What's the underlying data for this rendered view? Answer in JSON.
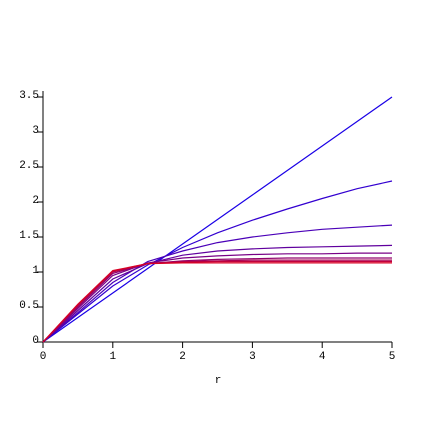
{
  "chart_data": {
    "type": "line",
    "x_label": "r",
    "x": [
      0,
      0.5,
      1,
      1.5,
      2,
      2.5,
      3,
      3.5,
      4,
      4.5,
      5
    ],
    "xlim": [
      0,
      5
    ],
    "xticks": [
      0,
      1,
      2,
      3,
      4,
      5
    ],
    "ylim": [
      0,
      3.5
    ],
    "yticks": [
      0,
      0.5,
      1,
      1.5,
      2,
      2.5,
      3,
      3.5
    ],
    "series": [
      {
        "color": "#1a00e6",
        "values": [
          0,
          0.35,
          0.7,
          1.05,
          1.4,
          1.75,
          2.1,
          2.45,
          2.8,
          3.15,
          3.5
        ]
      },
      {
        "color": "#3300d0",
        "values": [
          0,
          0.4,
          0.8,
          1.1,
          1.35,
          1.56,
          1.74,
          1.9,
          2.05,
          2.19,
          2.3
        ]
      },
      {
        "color": "#4a00b8",
        "values": [
          0,
          0.42,
          0.85,
          1.15,
          1.3,
          1.42,
          1.5,
          1.56,
          1.61,
          1.64,
          1.67
        ]
      },
      {
        "color": "#60009e",
        "values": [
          0,
          0.45,
          0.9,
          1.12,
          1.24,
          1.3,
          1.33,
          1.35,
          1.36,
          1.37,
          1.38
        ]
      },
      {
        "color": "#780086",
        "values": [
          0,
          0.48,
          0.95,
          1.13,
          1.2,
          1.23,
          1.25,
          1.26,
          1.26,
          1.27,
          1.27
        ]
      },
      {
        "color": "#90006c",
        "values": [
          0,
          0.5,
          0.98,
          1.12,
          1.16,
          1.18,
          1.19,
          1.2,
          1.2,
          1.2,
          1.2
        ]
      },
      {
        "color": "#a80054",
        "values": [
          0,
          0.52,
          1.0,
          1.12,
          1.15,
          1.16,
          1.17,
          1.17,
          1.17,
          1.17,
          1.17
        ]
      },
      {
        "color": "#c0003c",
        "values": [
          0,
          0.53,
          1.01,
          1.12,
          1.14,
          1.15,
          1.15,
          1.15,
          1.15,
          1.15,
          1.15
        ]
      },
      {
        "color": "#d80024",
        "values": [
          0,
          0.54,
          1.02,
          1.12,
          1.13,
          1.13,
          1.13,
          1.13,
          1.13,
          1.13,
          1.13
        ]
      }
    ]
  }
}
